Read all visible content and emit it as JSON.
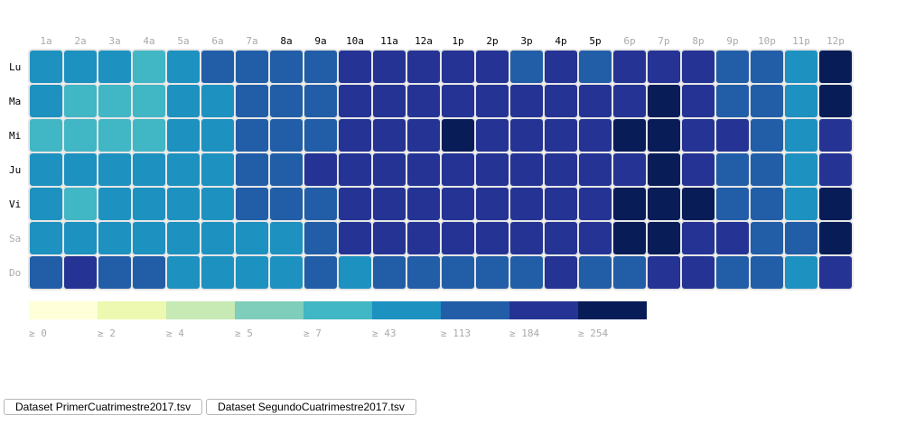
{
  "chart_data": {
    "type": "heatmap",
    "x_categories": [
      "1a",
      "2a",
      "3a",
      "4a",
      "5a",
      "6a",
      "7a",
      "8a",
      "9a",
      "10a",
      "11a",
      "12a",
      "1p",
      "2p",
      "3p",
      "4p",
      "5p",
      "6p",
      "7p",
      "8p",
      "9p",
      "10p",
      "11p",
      "12p"
    ],
    "y_categories": [
      "Lu",
      "Ma",
      "Mi",
      "Ju",
      "Vi",
      "Sa",
      "Do"
    ],
    "active_hours": [
      "8a",
      "9a",
      "10a",
      "11a",
      "12a",
      "1p",
      "2p",
      "3p",
      "4p",
      "5p"
    ],
    "active_days": [
      "Lu",
      "Ma",
      "Mi",
      "Ju",
      "Vi"
    ],
    "values": [
      [
        43,
        43,
        43,
        7,
        43,
        113,
        113,
        113,
        113,
        184,
        184,
        184,
        184,
        184,
        113,
        184,
        113,
        184,
        184,
        184,
        113,
        113,
        43,
        254
      ],
      [
        43,
        7,
        7,
        7,
        43,
        43,
        113,
        113,
        113,
        184,
        184,
        184,
        184,
        184,
        184,
        184,
        184,
        184,
        254,
        184,
        113,
        113,
        43,
        254
      ],
      [
        7,
        7,
        7,
        7,
        43,
        43,
        113,
        113,
        113,
        184,
        184,
        184,
        254,
        184,
        184,
        184,
        184,
        254,
        254,
        184,
        184,
        113,
        43,
        184
      ],
      [
        43,
        43,
        43,
        43,
        43,
        43,
        113,
        113,
        184,
        184,
        184,
        184,
        184,
        184,
        184,
        184,
        184,
        184,
        254,
        184,
        113,
        113,
        43,
        184
      ],
      [
        43,
        7,
        43,
        43,
        43,
        43,
        113,
        113,
        113,
        184,
        184,
        184,
        184,
        184,
        184,
        184,
        184,
        254,
        254,
        254,
        113,
        113,
        43,
        254
      ],
      [
        43,
        43,
        43,
        43,
        43,
        43,
        43,
        43,
        113,
        184,
        184,
        184,
        184,
        184,
        184,
        184,
        184,
        254,
        254,
        184,
        184,
        113,
        113,
        254
      ],
      [
        113,
        184,
        113,
        113,
        43,
        43,
        43,
        43,
        113,
        43,
        113,
        113,
        113,
        113,
        113,
        184,
        113,
        113,
        184,
        184,
        113,
        113,
        43,
        184
      ]
    ],
    "legend": {
      "thresholds": [
        0,
        2,
        4,
        5,
        7,
        43,
        113,
        184,
        254
      ],
      "labels": [
        "≥ 0",
        "≥ 2",
        "≥ 4",
        "≥ 5",
        "≥ 7",
        "≥ 43",
        "≥ 113",
        "≥ 184",
        "≥ 254"
      ],
      "colors": [
        "#ffffd9",
        "#edf8b1",
        "#c7e9b4",
        "#7fcdbb",
        "#41b6c4",
        "#1d91c0",
        "#225ea8",
        "#253494",
        "#081d58"
      ]
    },
    "label_colors": {
      "active": "#000000",
      "inactive": "#aaaaaa"
    },
    "grid": false
  },
  "buttons": {
    "dataset1": "Dataset PrimerCuatrimestre2017.tsv",
    "dataset2": "Dataset SegundoCuatrimestre2017.tsv"
  }
}
